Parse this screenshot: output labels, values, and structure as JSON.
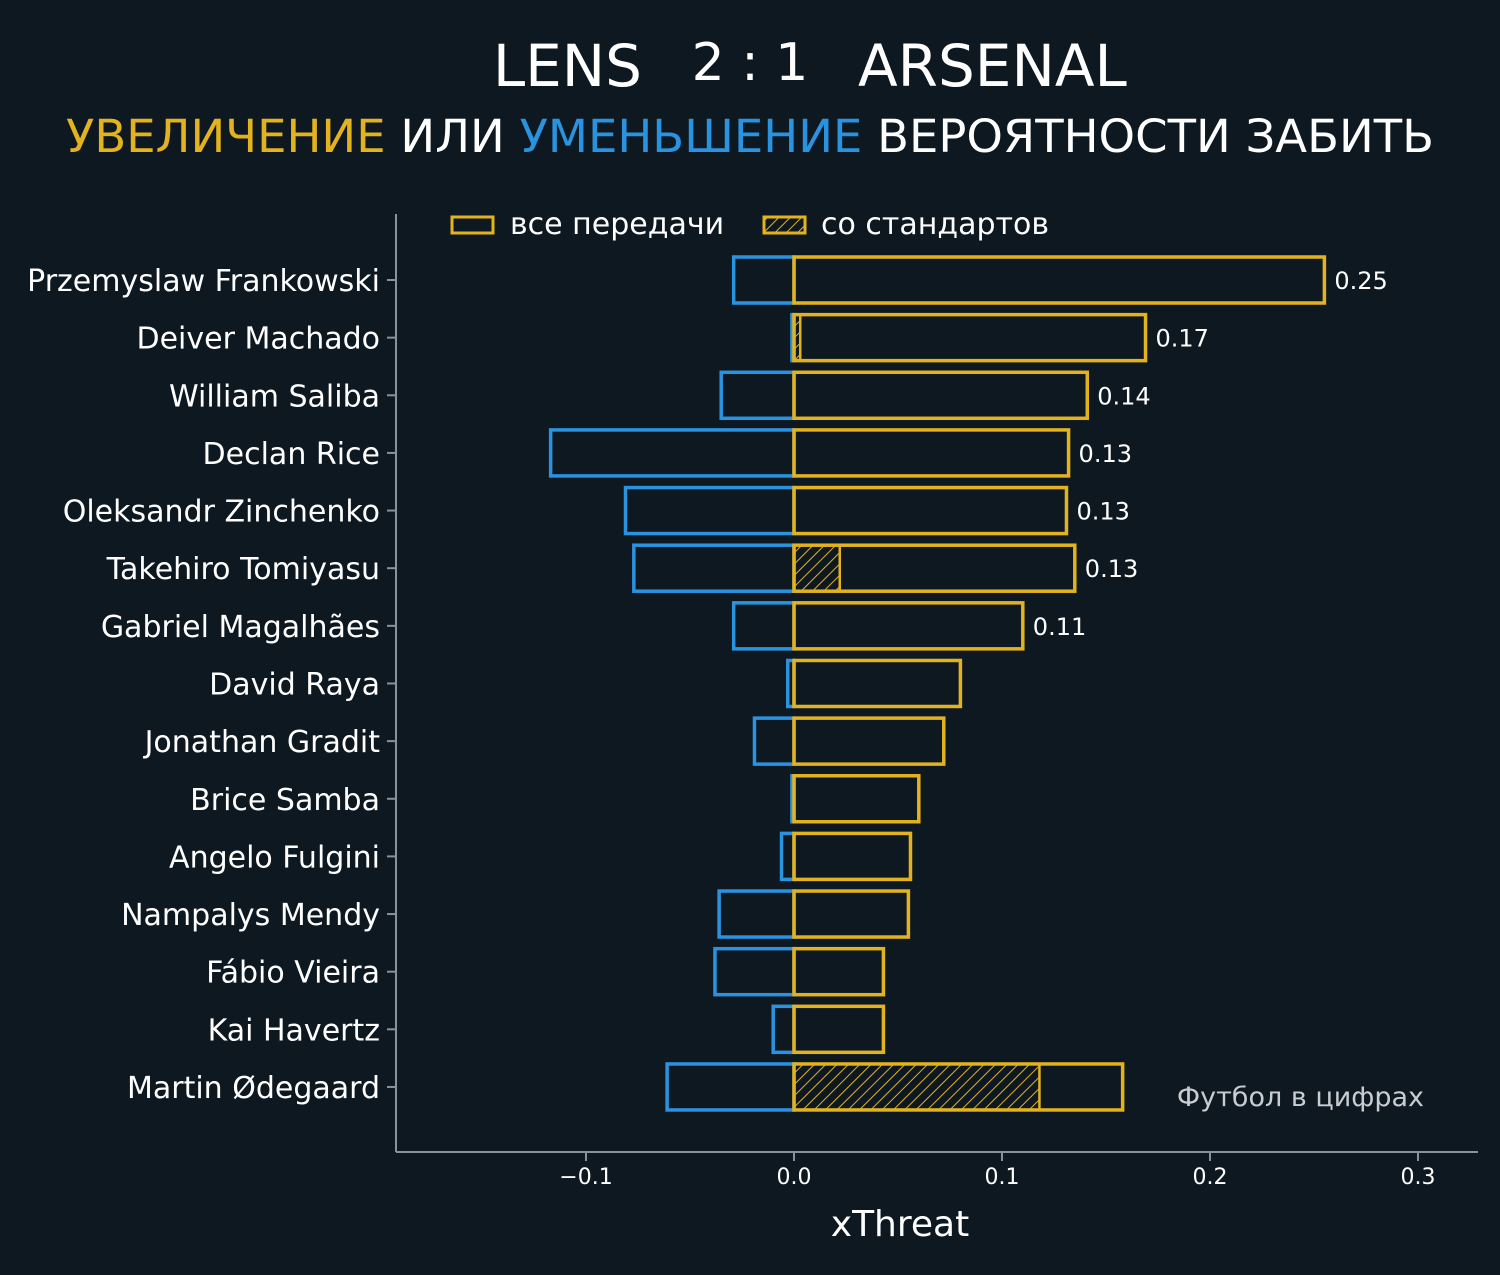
{
  "header": {
    "home_team": "LENS",
    "score": "2 : 1",
    "away_team": "ARSENAL",
    "subtitle_part1": "УВЕЛИЧЕНИЕ",
    "subtitle_part2": "ИЛИ",
    "subtitle_part3": "УМЕНЬШЕНИЕ",
    "subtitle_part4": "ВЕРОЯТНОСТИ ЗАБИТЬ"
  },
  "watermark": "Футбол в цифрах",
  "colors": {
    "background": "#0e1821",
    "increase": "#e3b21f",
    "decrease": "#2a93e0",
    "text": "#ffffff",
    "axis": "#8a9299"
  },
  "chart_data": {
    "type": "bar",
    "orientation": "horizontal",
    "xlabel": "xThreat",
    "xlim": [
      -0.19,
      0.33
    ],
    "xticks": [
      -0.1,
      0.0,
      0.1,
      0.2,
      0.3
    ],
    "xtick_labels": [
      "−0.1",
      "0.0",
      "0.1",
      "0.2",
      "0.3"
    ],
    "legend": {
      "placement": "top-left",
      "items": [
        "все передачи",
        "со стандартов"
      ]
    },
    "categories": [
      "Przemyslaw Frankowski",
      "Deiver Machado",
      "William Saliba",
      "Declan Rice",
      "Oleksandr Zinchenko",
      "Takehiro Tomiyasu",
      "Gabriel Magalhães",
      "David Raya",
      "Jonathan Gradit",
      "Brice Samba",
      "Angelo Fulgini",
      "Nampalys Mendy",
      "Fábio Vieira",
      "Kai Havertz",
      "Martin Ødegaard"
    ],
    "series": [
      {
        "name": "все передачи",
        "positive": [
          0.255,
          0.169,
          0.141,
          0.132,
          0.131,
          0.135,
          0.11,
          0.08,
          0.072,
          0.06,
          0.056,
          0.055,
          0.043,
          0.043,
          0.158
        ],
        "negative": [
          -0.029,
          -0.001,
          -0.035,
          -0.117,
          -0.081,
          -0.077,
          -0.029,
          -0.003,
          -0.019,
          -0.001,
          -0.006,
          -0.036,
          -0.038,
          -0.01,
          -0.061
        ]
      },
      {
        "name": "со стандартов",
        "positive": [
          0,
          0.003,
          0,
          0,
          0,
          0.022,
          0,
          0,
          0,
          0,
          0,
          0,
          0,
          0,
          0.118
        ]
      }
    ],
    "value_labels": [
      "0.25",
      "0.17",
      "0.14",
      "0.13",
      "0.13",
      "0.13",
      "0.11",
      "",
      "",
      "",
      "",
      "",
      "",
      "",
      ""
    ]
  }
}
